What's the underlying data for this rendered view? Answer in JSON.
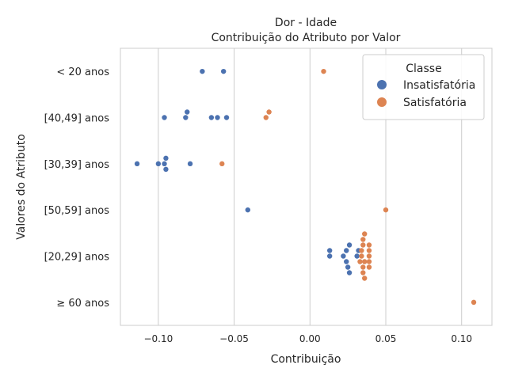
{
  "chart_data": {
    "type": "scatter",
    "subtype": "swarm",
    "title": "Dor - Idade",
    "subtitle": "Contribuição do Atributo por Valor",
    "xlabel": "Contribuição",
    "ylabel": "Valores do Atributo",
    "xlim": [
      -0.125,
      0.12
    ],
    "x_ticks": [
      -0.1,
      -0.05,
      0.0,
      0.05,
      0.1
    ],
    "x_tick_labels": [
      "−0.10",
      "−0.05",
      "0.00",
      "0.05",
      "0.10"
    ],
    "categories": [
      "< 20 anos",
      "[40,49] anos",
      "[30,39] anos",
      "[50,59] anos",
      "[20,29] anos",
      "≥ 60 anos"
    ],
    "grid": true,
    "legend": {
      "title": "Classe",
      "position": "top-right",
      "entries": [
        "Insatisfatória",
        "Satisfatória"
      ]
    },
    "series": [
      {
        "name": "Insatisfatória",
        "color": "#4c72b0",
        "points": [
          {
            "category": "< 20 anos",
            "x": -0.071,
            "offset": 0
          },
          {
            "category": "< 20 anos",
            "x": -0.057,
            "offset": 0
          },
          {
            "category": "[40,49] anos",
            "x": -0.096,
            "offset": 0
          },
          {
            "category": "[40,49] anos",
            "x": -0.082,
            "offset": 0
          },
          {
            "category": "[40,49] anos",
            "x": -0.081,
            "offset": -1
          },
          {
            "category": "[40,49] anos",
            "x": -0.065,
            "offset": 0
          },
          {
            "category": "[40,49] anos",
            "x": -0.061,
            "offset": 0
          },
          {
            "category": "[40,49] anos",
            "x": -0.055,
            "offset": 0
          },
          {
            "category": "[30,39] anos",
            "x": -0.114,
            "offset": 0
          },
          {
            "category": "[30,39] anos",
            "x": -0.1,
            "offset": 0
          },
          {
            "category": "[30,39] anos",
            "x": -0.096,
            "offset": 0
          },
          {
            "category": "[30,39] anos",
            "x": -0.095,
            "offset": -1
          },
          {
            "category": "[30,39] anos",
            "x": -0.095,
            "offset": 1
          },
          {
            "category": "[30,39] anos",
            "x": -0.079,
            "offset": 0
          },
          {
            "category": "[50,59] anos",
            "x": -0.041,
            "offset": 0
          },
          {
            "category": "[20,29] anos",
            "x": 0.013,
            "offset": 0
          },
          {
            "category": "[20,29] anos",
            "x": 0.013,
            "offset": -1
          },
          {
            "category": "[20,29] anos",
            "x": 0.022,
            "offset": 0
          },
          {
            "category": "[20,29] anos",
            "x": 0.024,
            "offset": -1
          },
          {
            "category": "[20,29] anos",
            "x": 0.024,
            "offset": 1
          },
          {
            "category": "[20,29] anos",
            "x": 0.025,
            "offset": 2
          },
          {
            "category": "[20,29] anos",
            "x": 0.026,
            "offset": -2
          },
          {
            "category": "[20,29] anos",
            "x": 0.026,
            "offset": 3
          },
          {
            "category": "[20,29] anos",
            "x": 0.031,
            "offset": 0
          },
          {
            "category": "[20,29] anos",
            "x": 0.032,
            "offset": -1
          }
        ]
      },
      {
        "name": "Satisfatória",
        "color": "#dd8452",
        "points": [
          {
            "category": "< 20 anos",
            "x": 0.009,
            "offset": 0
          },
          {
            "category": "[40,49] anos",
            "x": -0.029,
            "offset": 0
          },
          {
            "category": "[40,49] anos",
            "x": -0.027,
            "offset": -1
          },
          {
            "category": "[30,39] anos",
            "x": -0.058,
            "offset": 0
          },
          {
            "category": "[50,59] anos",
            "x": 0.05,
            "offset": 0
          },
          {
            "category": "[20,29] anos",
            "x": 0.033,
            "offset": 1
          },
          {
            "category": "[20,29] anos",
            "x": 0.034,
            "offset": -1
          },
          {
            "category": "[20,29] anos",
            "x": 0.034,
            "offset": 0
          },
          {
            "category": "[20,29] anos",
            "x": 0.035,
            "offset": -2
          },
          {
            "category": "[20,29] anos",
            "x": 0.035,
            "offset": -3
          },
          {
            "category": "[20,29] anos",
            "x": 0.035,
            "offset": 2
          },
          {
            "category": "[20,29] anos",
            "x": 0.035,
            "offset": 3
          },
          {
            "category": "[20,29] anos",
            "x": 0.036,
            "offset": -4
          },
          {
            "category": "[20,29] anos",
            "x": 0.036,
            "offset": 1
          },
          {
            "category": "[20,29] anos",
            "x": 0.036,
            "offset": 4
          },
          {
            "category": "[20,29] anos",
            "x": 0.039,
            "offset": -2
          },
          {
            "category": "[20,29] anos",
            "x": 0.039,
            "offset": -1
          },
          {
            "category": "[20,29] anos",
            "x": 0.039,
            "offset": 0
          },
          {
            "category": "[20,29] anos",
            "x": 0.039,
            "offset": 1
          },
          {
            "category": "[20,29] anos",
            "x": 0.039,
            "offset": 2
          }
        ]
      },
      {
        "name": "Satisfatória",
        "color": "#dd8452",
        "points": [
          {
            "category": "≥ 60 anos",
            "x": 0.108,
            "offset": 0
          }
        ]
      }
    ]
  }
}
